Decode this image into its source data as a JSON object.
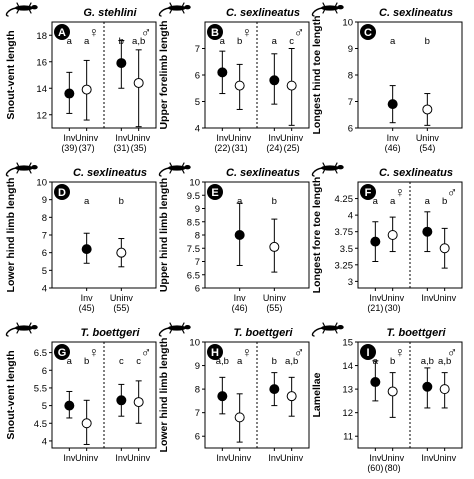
{
  "chart_data": [
    {
      "type": "scatter",
      "panel_letter": "A",
      "title": "G. stehlini",
      "ylabel": "Snout-vent length",
      "ylim": [
        11,
        19
      ],
      "yticks": [
        12,
        14,
        16,
        18
      ],
      "groups": [
        {
          "sex_label": "♀",
          "points": [
            {
              "label": "Inv",
              "n": "(39)",
              "mean": 13.6,
              "low": 12.1,
              "high": 15.2,
              "fill": "filled",
              "letter": "a"
            },
            {
              "label": "Uninv",
              "n": "(37)",
              "mean": 13.9,
              "low": 11.6,
              "high": 16.1,
              "fill": "open",
              "letter": "a"
            }
          ]
        },
        {
          "sex_label": "♂",
          "points": [
            {
              "label": "Inv",
              "n": "(31)",
              "mean": 15.9,
              "low": 14.0,
              "high": 17.6,
              "fill": "filled",
              "letter": "b"
            },
            {
              "label": "Uninv",
              "n": "(35)",
              "mean": 14.4,
              "low": 11.1,
              "high": 16.9,
              "fill": "open",
              "letter": "a,b"
            }
          ]
        }
      ]
    },
    {
      "type": "scatter",
      "panel_letter": "B",
      "title": "C. sexlineatus",
      "ylabel": "Upper forelimb length",
      "ylim": [
        4,
        8
      ],
      "yticks": [
        4,
        5,
        6,
        7
      ],
      "groups": [
        {
          "sex_label": "♀",
          "points": [
            {
              "label": "Inv",
              "n": "(22)",
              "mean": 6.1,
              "low": 5.3,
              "high": 6.9,
              "fill": "filled",
              "letter": "a"
            },
            {
              "label": "Uninv",
              "n": "(31)",
              "mean": 5.6,
              "low": 4.7,
              "high": 6.4,
              "fill": "open",
              "letter": "b"
            }
          ]
        },
        {
          "sex_label": "♂",
          "points": [
            {
              "label": "Inv",
              "n": "(24)",
              "mean": 5.8,
              "low": 4.9,
              "high": 6.8,
              "fill": "filled",
              "letter": "a"
            },
            {
              "label": "Uninv",
              "n": "(25)",
              "mean": 5.6,
              "low": 4.1,
              "high": 7.0,
              "fill": "open",
              "letter": "c"
            }
          ]
        }
      ]
    },
    {
      "type": "scatter",
      "panel_letter": "C",
      "title": "C. sexlineatus",
      "ylabel": "Longest hind toe length",
      "ylim": [
        6,
        10
      ],
      "yticks": [
        6,
        7,
        8,
        9,
        10
      ],
      "groups": [
        {
          "sex_label": "",
          "points": [
            {
              "label": "Inv",
              "n": "(46)",
              "mean": 6.9,
              "low": 6.2,
              "high": 7.6,
              "fill": "filled",
              "letter": "a"
            },
            {
              "label": "Uninv",
              "n": "(54)",
              "mean": 6.7,
              "low": 6.1,
              "high": 7.3,
              "fill": "open",
              "letter": "b"
            }
          ]
        }
      ]
    },
    {
      "type": "scatter",
      "panel_letter": "D",
      "title": "C. sexlineatus",
      "ylabel": "Lower hind limb length",
      "ylim": [
        4,
        10
      ],
      "yticks": [
        4,
        5,
        6,
        7,
        8,
        9,
        10
      ],
      "groups": [
        {
          "sex_label": "",
          "points": [
            {
              "label": "Inv",
              "n": "(45)",
              "mean": 6.2,
              "low": 5.4,
              "high": 7.1,
              "fill": "filled",
              "letter": "a"
            },
            {
              "label": "Uninv",
              "n": "(55)",
              "mean": 6.0,
              "low": 5.2,
              "high": 6.8,
              "fill": "open",
              "letter": "b"
            }
          ]
        }
      ]
    },
    {
      "type": "scatter",
      "panel_letter": "E",
      "title": "C. sexlineatus",
      "ylabel": "Upper hind limb length",
      "ylim": [
        6,
        10
      ],
      "yticks": [
        6,
        6.5,
        7,
        7.5,
        8,
        8.5,
        9,
        9.5,
        10
      ],
      "groups": [
        {
          "sex_label": "",
          "points": [
            {
              "label": "Inv",
              "n": "(46)",
              "mean": 8.0,
              "low": 6.85,
              "high": 9.2,
              "fill": "filled",
              "letter": "a"
            },
            {
              "label": "Uninv",
              "n": "(55)",
              "mean": 7.55,
              "low": 6.6,
              "high": 8.6,
              "fill": "open",
              "letter": "b"
            }
          ]
        }
      ]
    },
    {
      "type": "scatter",
      "panel_letter": "F",
      "title": "C. sexlineatus",
      "ylabel": "Longest fore toe length",
      "ylim": [
        2.9,
        4.5
      ],
      "yticks": [
        3,
        3.25,
        3.5,
        3.75,
        4,
        4.25
      ],
      "groups": [
        {
          "sex_label": "♀",
          "points": [
            {
              "label": "Inv",
              "n": "(21)",
              "mean": 3.6,
              "low": 3.3,
              "high": 3.9,
              "fill": "filled",
              "letter": "a"
            },
            {
              "label": "Uninv",
              "n": "(30)",
              "mean": 3.7,
              "low": 3.45,
              "high": 3.97,
              "fill": "open",
              "letter": "a"
            }
          ]
        },
        {
          "sex_label": "♂",
          "points": [
            {
              "label": "Inv",
              "n": "",
              "mean": 3.75,
              "low": 3.45,
              "high": 4.05,
              "fill": "filled",
              "letter": "a"
            },
            {
              "label": "Uninv",
              "n": "",
              "mean": 3.5,
              "low": 3.2,
              "high": 3.8,
              "fill": "open",
              "letter": "b"
            }
          ]
        }
      ]
    },
    {
      "type": "scatter",
      "panel_letter": "G",
      "title": "T. boettgeri",
      "ylabel": "Snout-vent length",
      "ylim": [
        3.8,
        6.8
      ],
      "yticks": [
        4,
        4.5,
        5,
        5.5,
        6,
        6.5
      ],
      "groups": [
        {
          "sex_label": "♀",
          "points": [
            {
              "label": "Inv",
              "n": "",
              "mean": 5.0,
              "low": 4.65,
              "high": 5.4,
              "fill": "filled",
              "letter": "a"
            },
            {
              "label": "Uninv",
              "n": "",
              "mean": 4.5,
              "low": 3.9,
              "high": 5.15,
              "fill": "open",
              "letter": "b"
            }
          ]
        },
        {
          "sex_label": "♂",
          "points": [
            {
              "label": "Inv",
              "n": "",
              "mean": 5.15,
              "low": 4.7,
              "high": 5.6,
              "fill": "filled",
              "letter": "c"
            },
            {
              "label": "Uninv",
              "n": "",
              "mean": 5.1,
              "low": 4.5,
              "high": 5.7,
              "fill": "open",
              "letter": "c"
            }
          ]
        }
      ]
    },
    {
      "type": "scatter",
      "panel_letter": "H",
      "title": "T. boettgeri",
      "ylabel": "Lower hind limb length",
      "ylim": [
        5.5,
        10
      ],
      "yticks": [
        6,
        7,
        8,
        9,
        10
      ],
      "groups": [
        {
          "sex_label": "♀",
          "points": [
            {
              "label": "Inv",
              "n": "",
              "mean": 7.7,
              "low": 6.95,
              "high": 8.5,
              "fill": "filled",
              "letter": "a,b"
            },
            {
              "label": "Uninv",
              "n": "",
              "mean": 6.8,
              "low": 5.75,
              "high": 7.8,
              "fill": "open",
              "letter": "a"
            }
          ]
        },
        {
          "sex_label": "♂",
          "points": [
            {
              "label": "Inv",
              "n": "",
              "mean": 8.0,
              "low": 7.3,
              "high": 8.7,
              "fill": "filled",
              "letter": "b"
            },
            {
              "label": "Uninv",
              "n": "",
              "mean": 7.7,
              "low": 6.85,
              "high": 8.5,
              "fill": "open",
              "letter": "a,b"
            }
          ]
        }
      ]
    },
    {
      "type": "scatter",
      "panel_letter": "I",
      "title": "T. boettgeri",
      "ylabel": "Lamellae",
      "ylim": [
        10.5,
        15
      ],
      "yticks": [
        11,
        12,
        13,
        14,
        15
      ],
      "groups": [
        {
          "sex_label": "♀",
          "points": [
            {
              "label": "Inv",
              "n": "(60)",
              "mean": 13.3,
              "low": 12.5,
              "high": 14.2,
              "fill": "filled",
              "letter": "a"
            },
            {
              "label": "Uninv",
              "n": "(80)",
              "mean": 12.9,
              "low": 11.8,
              "high": 13.7,
              "fill": "open",
              "letter": "b"
            }
          ]
        },
        {
          "sex_label": "♂",
          "points": [
            {
              "label": "Inv",
              "n": "",
              "mean": 13.1,
              "low": 12.2,
              "high": 13.9,
              "fill": "filled",
              "letter": "a,b"
            },
            {
              "label": "Uninv",
              "n": "",
              "mean": 13.0,
              "low": 12.2,
              "high": 13.7,
              "fill": "open",
              "letter": "a,b"
            }
          ]
        }
      ]
    }
  ]
}
